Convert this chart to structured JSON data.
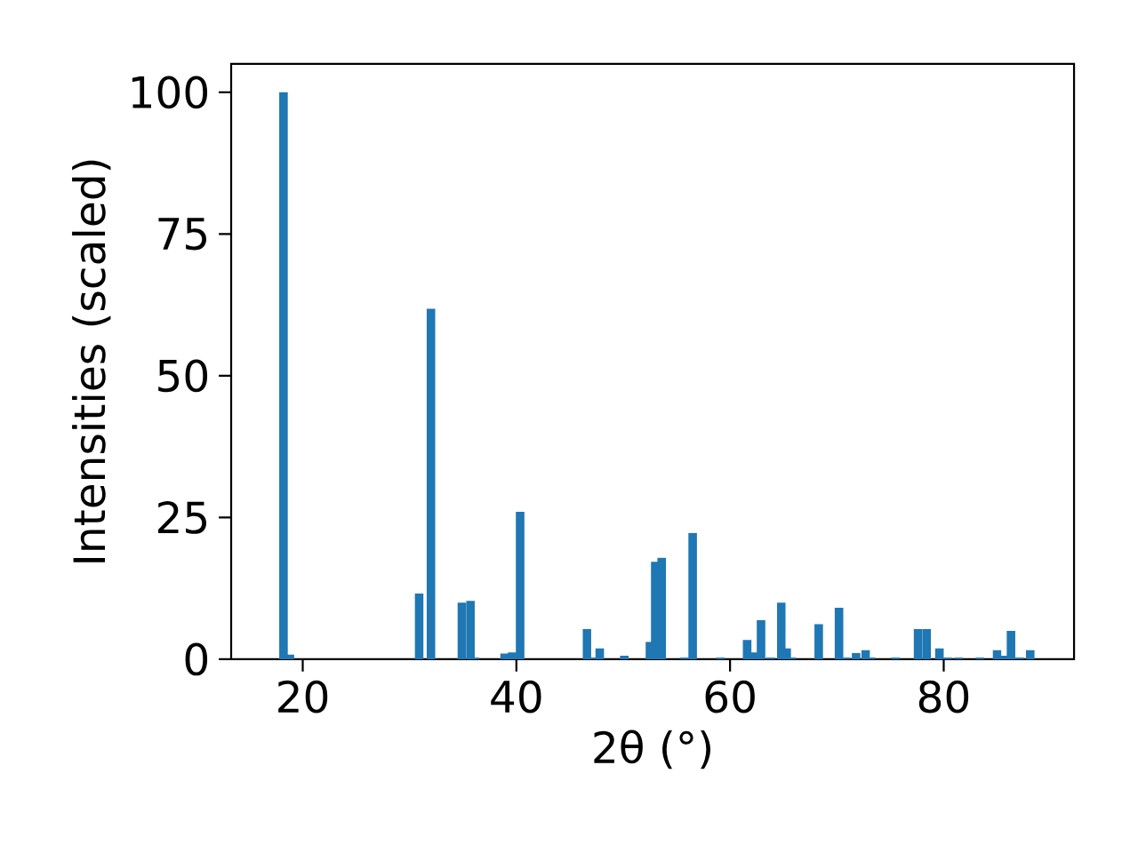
{
  "chart_data": {
    "type": "bar",
    "xlabel": "2θ (°)",
    "ylabel": "Intensities (scaled)",
    "color": "#1f77b4",
    "x": [
      18.2,
      18.8,
      30.9,
      32.0,
      34.9,
      35.7,
      36.1,
      38.9,
      39.6,
      40.35,
      46.6,
      47.1,
      47.8,
      50.1,
      52.5,
      53.0,
      53.6,
      55.7,
      56.5,
      59.1,
      61.6,
      62.3,
      62.9,
      63.8,
      64.8,
      65.3,
      65.8,
      68.3,
      70.2,
      70.9,
      71.8,
      72.7,
      73.2,
      75.5,
      77.6,
      78.4,
      79.6,
      80.4,
      81.4,
      83.4,
      85.0,
      85.6,
      86.3,
      87.1,
      88.1
    ],
    "values": [
      100,
      0.8,
      11.6,
      61.8,
      10.0,
      10.3,
      0.3,
      1.0,
      1.2,
      26,
      5.3,
      0.3,
      1.9,
      0.6,
      3.1,
      17.2,
      17.9,
      0.3,
      22.3,
      0.3,
      3.4,
      1.2,
      6.9,
      0.3,
      10.0,
      1.9,
      0.3,
      6.2,
      9.1,
      0.3,
      1.1,
      1.6,
      0.3,
      0.3,
      5.3,
      5.3,
      1.9,
      0.3,
      0.3,
      0.3,
      1.6,
      0.6,
      5.0,
      0.3,
      1.6
    ],
    "xlim": [
      13.3,
      92.2
    ],
    "ylim": [
      0,
      105
    ],
    "xticks": [
      20,
      40,
      60,
      80
    ],
    "yticks": [
      0,
      25,
      50,
      75,
      100
    ]
  }
}
